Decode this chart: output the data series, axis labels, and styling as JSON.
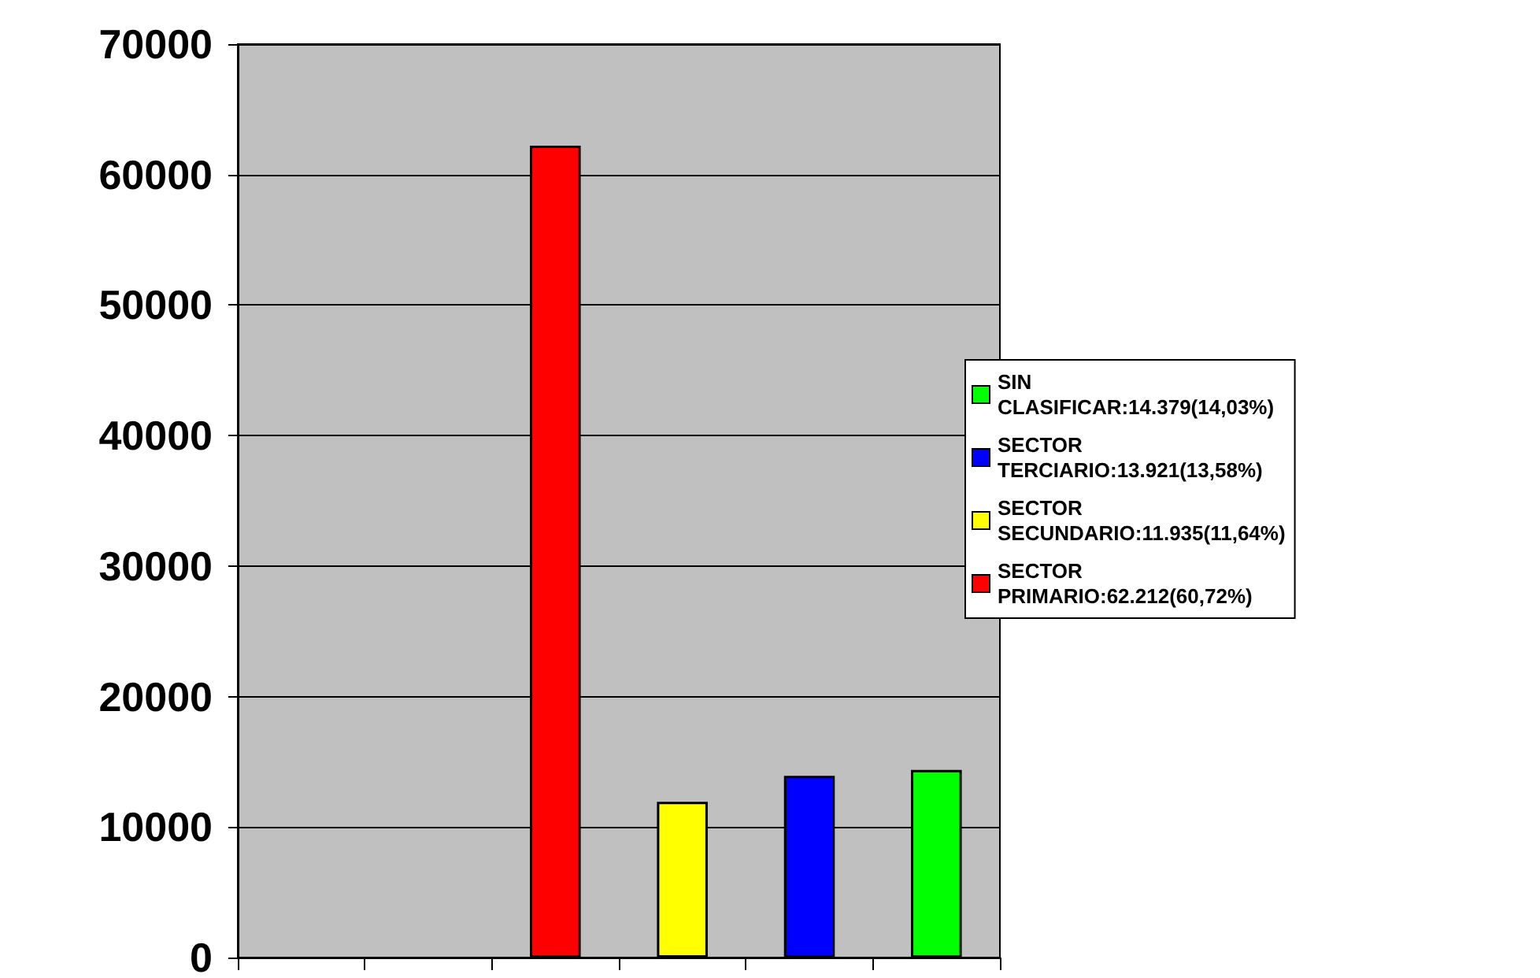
{
  "chart_data": {
    "type": "bar",
    "categories": [
      null,
      null,
      null,
      null,
      null,
      null
    ],
    "series": [
      {
        "name": "SIN CLASIFICAR:14.379(14,03%)",
        "color": "#00ff00",
        "values": [
          null,
          null,
          null,
          null,
          null,
          14379
        ]
      },
      {
        "name": "SECTOR TERCIARIO:13.921(13,58%)",
        "color": "#0000ff",
        "values": [
          null,
          null,
          null,
          null,
          13921,
          null
        ]
      },
      {
        "name": "SECTOR SECUNDARIO:11.935(11,64%)",
        "color": "#ffff00",
        "values": [
          null,
          null,
          null,
          11935,
          null,
          null
        ]
      },
      {
        "name": "SECTOR PRIMARIO:62.212(60,72%)",
        "color": "#ff0000",
        "values": [
          null,
          null,
          62212,
          null,
          null,
          null
        ]
      }
    ],
    "ylim": [
      0,
      70000
    ],
    "yticks": [
      0,
      10000,
      20000,
      30000,
      40000,
      50000,
      60000,
      70000
    ],
    "grid": "y",
    "legend": "right"
  }
}
